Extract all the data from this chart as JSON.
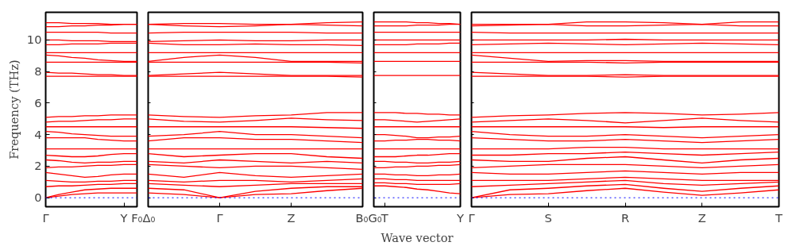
{
  "chart_data": [
    {
      "type": "line",
      "ylabel": "Frequency (THz)",
      "categories": [
        "Γ",
        null,
        null,
        null,
        null,
        null,
        "Y",
        "F₀"
      ],
      "ylim": [
        -0.57,
        11.76
      ],
      "yticks": [
        0,
        2,
        4,
        6,
        8,
        10
      ],
      "ref_lines": [
        {
          "axis": "y",
          "value": 0,
          "label": null,
          "color": "#0000ff",
          "line_style": "dotted"
        }
      ],
      "series": [
        {
          "color": "#ff0000",
          "values": [
            11.1,
            11.1,
            11.05,
            11.05,
            11.05,
            11.0,
            11.0,
            11.0
          ]
        },
        {
          "color": "#ff0000",
          "values": [
            10.85,
            10.85,
            10.9,
            10.9,
            10.95,
            10.95,
            11.0,
            11.0
          ]
        },
        {
          "color": "#ff0000",
          "values": [
            10.5,
            10.5,
            10.5,
            10.5,
            10.5,
            10.45,
            10.45,
            10.45
          ]
        },
        {
          "color": "#ff0000",
          "values": [
            10.0,
            10.0,
            9.95,
            9.95,
            9.95,
            9.9,
            9.9,
            9.9
          ]
        },
        {
          "color": "#ff0000",
          "values": [
            9.7,
            9.7,
            9.75,
            9.75,
            9.75,
            9.8,
            9.8,
            9.8
          ]
        },
        {
          "color": "#ff0000",
          "values": [
            9.2,
            9.2,
            9.2,
            9.2,
            9.2,
            9.2,
            9.2,
            9.2
          ]
        },
        {
          "color": "#ff0000",
          "values": [
            9.05,
            9.0,
            8.9,
            8.85,
            8.75,
            8.7,
            8.65,
            8.65
          ]
        },
        {
          "color": "#ff0000",
          "values": [
            8.6,
            8.6,
            8.6,
            8.6,
            8.6,
            8.6,
            8.6,
            8.6
          ]
        },
        {
          "color": "#ff0000",
          "values": [
            7.95,
            7.9,
            7.9,
            7.85,
            7.8,
            7.8,
            7.75,
            7.75
          ]
        },
        {
          "color": "#ff0000",
          "values": [
            7.7,
            7.7,
            7.7,
            7.7,
            7.7,
            7.7,
            7.7,
            7.7
          ]
        },
        {
          "color": "#ff0000",
          "values": [
            5.1,
            5.15,
            5.15,
            5.2,
            5.2,
            5.25,
            5.25,
            5.25
          ]
        },
        {
          "color": "#ff0000",
          "values": [
            4.8,
            4.85,
            4.85,
            4.9,
            4.95,
            4.95,
            5.0,
            5.0
          ]
        },
        {
          "color": "#ff0000",
          "values": [
            4.5,
            4.5,
            4.5,
            4.5,
            4.5,
            4.5,
            4.5,
            4.5
          ]
        },
        {
          "color": "#ff0000",
          "values": [
            4.2,
            4.15,
            4.05,
            4.0,
            3.95,
            3.9,
            3.9,
            3.9
          ]
        },
        {
          "color": "#ff0000",
          "values": [
            3.8,
            3.8,
            3.8,
            3.8,
            3.7,
            3.65,
            3.6,
            3.6
          ]
        },
        {
          "color": "#ff0000",
          "values": [
            3.1,
            3.1,
            3.1,
            3.1,
            3.1,
            3.1,
            3.1,
            3.1
          ]
        },
        {
          "color": "#ff0000",
          "values": [
            2.7,
            2.65,
            2.6,
            2.6,
            2.65,
            2.75,
            2.8,
            2.8
          ]
        },
        {
          "color": "#ff0000",
          "values": [
            2.4,
            2.35,
            2.25,
            2.2,
            2.25,
            2.25,
            2.3,
            2.3
          ]
        },
        {
          "color": "#ff0000",
          "values": [
            1.9,
            1.95,
            1.95,
            2.0,
            2.05,
            2.05,
            2.1,
            2.1
          ]
        },
        {
          "color": "#ff0000",
          "values": [
            1.6,
            1.5,
            1.4,
            1.3,
            1.35,
            1.45,
            1.5,
            1.5
          ]
        },
        {
          "color": "#ff0000",
          "values": [
            1.1,
            1.05,
            1.0,
            1.0,
            1.05,
            1.05,
            1.1,
            1.1
          ]
        },
        {
          "color": "#ff0000",
          "values": [
            0.7,
            0.75,
            0.75,
            0.8,
            0.85,
            0.85,
            0.9,
            0.9
          ]
        },
        {
          "color": "#ff0000",
          "values": [
            0.0,
            0.2,
            0.35,
            0.5,
            0.55,
            0.6,
            0.6,
            0.6
          ]
        },
        {
          "color": "#ff0000",
          "values": [
            0.0,
            0.1,
            0.2,
            0.25,
            0.3,
            0.3,
            0.3,
            0.3
          ]
        }
      ]
    },
    {
      "type": "line",
      "tick_labels": "x",
      "categories": [
        "Δ₀",
        null,
        "Γ",
        null,
        "Z",
        null,
        "B₀"
      ],
      "ylim": [
        -0.57,
        11.76
      ],
      "yticks": [
        0,
        2,
        4,
        6,
        8,
        10
      ],
      "ref_lines": [
        {
          "axis": "y",
          "value": 0,
          "label": null,
          "color": "#0000ff",
          "line_style": "dotted"
        }
      ],
      "series": [
        {
          "color": "#ff0000",
          "values": [
            11.0,
            11.05,
            11.05,
            11.0,
            11.0,
            11.1,
            11.15
          ]
        },
        {
          "color": "#ff0000",
          "values": [
            11.0,
            10.9,
            10.85,
            10.9,
            11.0,
            10.95,
            10.9
          ]
        },
        {
          "color": "#ff0000",
          "values": [
            10.45,
            10.5,
            10.5,
            10.5,
            10.5,
            10.45,
            10.45
          ]
        },
        {
          "color": "#ff0000",
          "values": [
            9.9,
            9.95,
            10.0,
            9.95,
            9.95,
            10.0,
            10.0
          ]
        },
        {
          "color": "#ff0000",
          "values": [
            9.8,
            9.7,
            9.7,
            9.75,
            9.7,
            9.7,
            9.65
          ]
        },
        {
          "color": "#ff0000",
          "values": [
            9.2,
            9.2,
            9.2,
            9.2,
            9.2,
            9.2,
            9.2
          ]
        },
        {
          "color": "#ff0000",
          "values": [
            8.65,
            8.9,
            9.05,
            8.9,
            8.65,
            8.65,
            8.65
          ]
        },
        {
          "color": "#ff0000",
          "values": [
            8.6,
            8.6,
            8.6,
            8.6,
            8.6,
            8.6,
            8.55
          ]
        },
        {
          "color": "#ff0000",
          "values": [
            7.75,
            7.85,
            7.95,
            7.85,
            7.75,
            7.75,
            7.75
          ]
        },
        {
          "color": "#ff0000",
          "values": [
            7.7,
            7.7,
            7.7,
            7.7,
            7.7,
            7.7,
            7.65
          ]
        },
        {
          "color": "#ff0000",
          "values": [
            5.25,
            5.15,
            5.1,
            5.2,
            5.25,
            5.4,
            5.4
          ]
        },
        {
          "color": "#ff0000",
          "values": [
            5.0,
            4.85,
            4.8,
            4.9,
            5.05,
            4.95,
            4.9
          ]
        },
        {
          "color": "#ff0000",
          "values": [
            4.5,
            4.5,
            4.5,
            4.5,
            4.5,
            4.45,
            4.4
          ]
        },
        {
          "color": "#ff0000",
          "values": [
            3.9,
            4.0,
            4.2,
            4.0,
            4.0,
            3.9,
            3.8
          ]
        },
        {
          "color": "#ff0000",
          "values": [
            3.6,
            3.8,
            3.8,
            3.7,
            3.7,
            3.6,
            3.5
          ]
        },
        {
          "color": "#ff0000",
          "values": [
            3.1,
            3.1,
            3.1,
            3.1,
            3.1,
            3.1,
            3.1
          ]
        },
        {
          "color": "#ff0000",
          "values": [
            2.8,
            2.6,
            2.7,
            2.8,
            2.8,
            2.6,
            2.5
          ]
        },
        {
          "color": "#ff0000",
          "values": [
            2.3,
            2.2,
            2.4,
            2.3,
            2.2,
            2.3,
            2.2
          ]
        },
        {
          "color": "#ff0000",
          "values": [
            2.1,
            2.0,
            1.9,
            2.0,
            2.0,
            1.9,
            1.8
          ]
        },
        {
          "color": "#ff0000",
          "values": [
            1.5,
            1.3,
            1.6,
            1.4,
            1.3,
            1.4,
            1.5
          ]
        },
        {
          "color": "#ff0000",
          "values": [
            1.1,
            1.0,
            1.1,
            1.1,
            1.0,
            1.1,
            1.2
          ]
        },
        {
          "color": "#ff0000",
          "values": [
            0.9,
            0.8,
            0.7,
            0.8,
            0.9,
            0.9,
            0.9
          ]
        },
        {
          "color": "#ff0000",
          "values": [
            0.6,
            0.5,
            0.0,
            0.4,
            0.6,
            0.7,
            0.7
          ]
        },
        {
          "color": "#ff0000",
          "values": [
            0.3,
            0.2,
            0.0,
            0.2,
            0.25,
            0.45,
            0.6
          ]
        }
      ]
    },
    {
      "type": "line",
      "tick_labels": "x",
      "xlabel": "Wave vector",
      "categories": [
        "G₀",
        "T",
        null,
        null,
        null,
        null,
        null,
        null,
        "Y"
      ],
      "ylim": [
        -0.57,
        11.76
      ],
      "yticks": [
        0,
        2,
        4,
        6,
        8,
        10
      ],
      "ref_lines": [
        {
          "axis": "y",
          "value": 0,
          "label": null,
          "color": "#0000ff",
          "line_style": "dotted"
        }
      ],
      "series": [
        {
          "color": "#ff0000",
          "values": [
            11.15,
            11.15,
            11.15,
            11.15,
            11.1,
            11.1,
            11.05,
            11.05,
            11.0
          ]
        },
        {
          "color": "#ff0000",
          "values": [
            10.9,
            10.9,
            10.9,
            10.9,
            10.95,
            10.95,
            10.95,
            11.0,
            11.0
          ]
        },
        {
          "color": "#ff0000",
          "values": [
            10.5,
            10.5,
            10.5,
            10.5,
            10.5,
            10.5,
            10.5,
            10.5,
            10.5
          ]
        },
        {
          "color": "#ff0000",
          "values": [
            10.0,
            10.0,
            10.0,
            10.0,
            10.0,
            10.0,
            10.0,
            10.0,
            10.0
          ]
        },
        {
          "color": "#ff0000",
          "values": [
            9.7,
            9.7,
            9.7,
            9.7,
            9.75,
            9.75,
            9.75,
            9.8,
            9.8
          ]
        },
        {
          "color": "#ff0000",
          "values": [
            9.2,
            9.2,
            9.2,
            9.2,
            9.2,
            9.2,
            9.2,
            9.2,
            9.2
          ]
        },
        {
          "color": "#ff0000",
          "values": [
            8.65,
            8.65,
            8.65,
            8.65,
            8.65,
            8.65,
            8.65,
            8.65,
            8.65
          ]
        },
        {
          "color": "#ff0000",
          "values": [
            7.75,
            7.75,
            7.75,
            7.75,
            7.75,
            7.75,
            7.75,
            7.75,
            7.75
          ]
        },
        {
          "color": "#ff0000",
          "values": [
            5.4,
            5.4,
            5.4,
            5.35,
            5.35,
            5.3,
            5.3,
            5.25,
            5.25
          ]
        },
        {
          "color": "#ff0000",
          "values": [
            4.95,
            4.95,
            4.9,
            4.85,
            4.8,
            4.85,
            4.9,
            4.95,
            5.0
          ]
        },
        {
          "color": "#ff0000",
          "values": [
            4.5,
            4.5,
            4.5,
            4.5,
            4.5,
            4.5,
            4.5,
            4.5,
            4.5
          ]
        },
        {
          "color": "#ff0000",
          "values": [
            4.0,
            4.0,
            3.95,
            3.9,
            3.8,
            3.8,
            3.85,
            3.85,
            3.9
          ]
        },
        {
          "color": "#ff0000",
          "values": [
            3.6,
            3.6,
            3.65,
            3.65,
            3.7,
            3.7,
            3.65,
            3.65,
            3.6
          ]
        },
        {
          "color": "#ff0000",
          "values": [
            3.1,
            3.1,
            3.1,
            3.1,
            3.1,
            3.1,
            3.1,
            3.1,
            3.1
          ]
        },
        {
          "color": "#ff0000",
          "values": [
            2.6,
            2.6,
            2.6,
            2.65,
            2.7,
            2.7,
            2.75,
            2.8,
            2.8
          ]
        },
        {
          "color": "#ff0000",
          "values": [
            2.3,
            2.3,
            2.25,
            2.25,
            2.2,
            2.2,
            2.25,
            2.25,
            2.3
          ]
        },
        {
          "color": "#ff0000",
          "values": [
            1.9,
            1.9,
            1.95,
            1.95,
            2.0,
            2.0,
            2.05,
            2.05,
            2.1
          ]
        },
        {
          "color": "#ff0000",
          "values": [
            1.5,
            1.5,
            1.45,
            1.45,
            1.4,
            1.4,
            1.45,
            1.45,
            1.5
          ]
        },
        {
          "color": "#ff0000",
          "values": [
            1.2,
            1.2,
            1.15,
            1.15,
            1.1,
            1.1,
            1.1,
            1.1,
            1.1
          ]
        },
        {
          "color": "#ff0000",
          "values": [
            0.95,
            0.95,
            0.9,
            0.9,
            0.85,
            0.85,
            0.85,
            0.85,
            0.9
          ]
        },
        {
          "color": "#ff0000",
          "values": [
            0.75,
            0.75,
            0.7,
            0.65,
            0.55,
            0.5,
            0.4,
            0.3,
            0.25
          ]
        }
      ]
    },
    {
      "type": "line",
      "tick_labels": "x",
      "categories": [
        "Γ",
        null,
        "S",
        null,
        "R",
        null,
        "Z",
        null,
        "T"
      ],
      "ylim": [
        -0.57,
        11.76
      ],
      "yticks": [
        0,
        2,
        4,
        6,
        8,
        10
      ],
      "ref_lines": [
        {
          "axis": "y",
          "value": 0,
          "label": null,
          "color": "#0000ff",
          "line_style": "dotted"
        }
      ],
      "series": [
        {
          "color": "#ff0000",
          "values": [
            11.0,
            11.0,
            11.0,
            11.15,
            11.15,
            11.1,
            11.0,
            11.15,
            11.15
          ]
        },
        {
          "color": "#ff0000",
          "values": [
            10.9,
            10.95,
            11.0,
            10.9,
            10.9,
            10.95,
            11.0,
            10.9,
            10.9
          ]
        },
        {
          "color": "#ff0000",
          "values": [
            10.5,
            10.45,
            10.45,
            10.45,
            10.45,
            10.45,
            10.45,
            10.45,
            10.45
          ]
        },
        {
          "color": "#ff0000",
          "values": [
            10.0,
            10.0,
            10.0,
            10.0,
            10.05,
            10.0,
            10.0,
            10.0,
            10.0
          ]
        },
        {
          "color": "#ff0000",
          "values": [
            9.7,
            9.75,
            9.8,
            9.75,
            9.7,
            9.75,
            9.8,
            9.75,
            9.7
          ]
        },
        {
          "color": "#ff0000",
          "values": [
            9.2,
            9.2,
            9.2,
            9.2,
            9.2,
            9.2,
            9.2,
            9.2,
            9.2
          ]
        },
        {
          "color": "#ff0000",
          "values": [
            9.05,
            8.85,
            8.65,
            8.7,
            8.7,
            8.65,
            8.65,
            8.65,
            8.65
          ]
        },
        {
          "color": "#ff0000",
          "values": [
            8.6,
            8.6,
            8.6,
            8.6,
            8.55,
            8.6,
            8.6,
            8.6,
            8.6
          ]
        },
        {
          "color": "#ff0000",
          "values": [
            7.95,
            7.85,
            7.75,
            7.75,
            7.8,
            7.75,
            7.75,
            7.75,
            7.75
          ]
        },
        {
          "color": "#ff0000",
          "values": [
            7.7,
            7.7,
            7.7,
            7.7,
            7.65,
            7.7,
            7.7,
            7.7,
            7.7
          ]
        },
        {
          "color": "#ff0000",
          "values": [
            5.1,
            5.2,
            5.25,
            5.35,
            5.4,
            5.35,
            5.25,
            5.3,
            5.4
          ]
        },
        {
          "color": "#ff0000",
          "values": [
            4.8,
            4.9,
            5.0,
            4.9,
            4.75,
            4.9,
            5.05,
            4.9,
            4.8
          ]
        },
        {
          "color": "#ff0000",
          "values": [
            4.5,
            4.5,
            4.5,
            4.5,
            4.5,
            4.45,
            4.5,
            4.5,
            4.5
          ]
        },
        {
          "color": "#ff0000",
          "values": [
            4.2,
            4.0,
            3.9,
            3.9,
            4.0,
            3.9,
            3.8,
            3.9,
            4.0
          ]
        },
        {
          "color": "#ff0000",
          "values": [
            3.8,
            3.7,
            3.6,
            3.6,
            3.7,
            3.6,
            3.5,
            3.6,
            3.7
          ]
        },
        {
          "color": "#ff0000",
          "values": [
            3.1,
            3.1,
            3.1,
            3.2,
            3.2,
            3.1,
            3.1,
            3.1,
            3.1
          ]
        },
        {
          "color": "#ff0000",
          "values": [
            2.7,
            2.7,
            2.8,
            2.8,
            2.9,
            2.8,
            2.7,
            2.8,
            2.9
          ]
        },
        {
          "color": "#ff0000",
          "values": [
            2.4,
            2.3,
            2.3,
            2.5,
            2.6,
            2.4,
            2.2,
            2.4,
            2.5
          ]
        },
        {
          "color": "#ff0000",
          "values": [
            1.9,
            2.0,
            2.1,
            2.1,
            2.1,
            2.0,
            1.9,
            2.0,
            2.1
          ]
        },
        {
          "color": "#ff0000",
          "values": [
            1.6,
            1.5,
            1.5,
            1.6,
            1.7,
            1.6,
            1.5,
            1.6,
            1.6
          ]
        },
        {
          "color": "#ff0000",
          "values": [
            1.1,
            1.1,
            1.1,
            1.2,
            1.3,
            1.2,
            1.1,
            1.1,
            1.1
          ]
        },
        {
          "color": "#ff0000",
          "values": [
            0.7,
            0.8,
            0.9,
            1.0,
            1.1,
            0.9,
            0.8,
            0.9,
            1.0
          ]
        },
        {
          "color": "#ff0000",
          "values": [
            0.0,
            0.5,
            0.6,
            0.75,
            0.85,
            0.6,
            0.4,
            0.6,
            0.75
          ]
        },
        {
          "color": "#ff0000",
          "values": [
            0.0,
            0.2,
            0.25,
            0.45,
            0.6,
            0.35,
            0.15,
            0.3,
            0.5
          ]
        }
      ]
    }
  ]
}
